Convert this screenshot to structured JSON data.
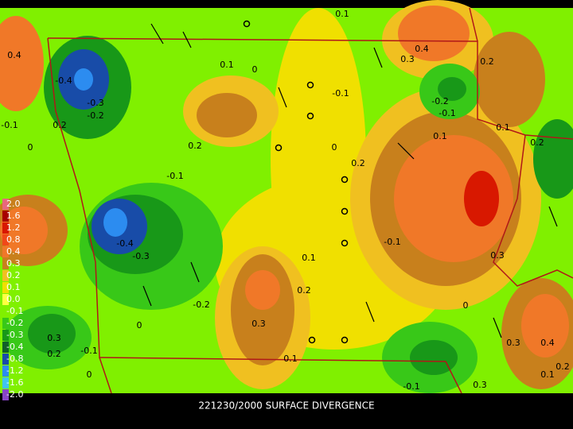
{
  "caption": "221230/2000 SURFACE DIVERGENCE",
  "legend": {
    "items": [
      {
        "label": "2.0",
        "color": "#e8687c"
      },
      {
        "label": "1.6",
        "color": "#a80000"
      },
      {
        "label": "1.2",
        "color": "#d81800"
      },
      {
        "label": "0.8",
        "color": "#f04818"
      },
      {
        "label": "0.4",
        "color": "#f07828"
      },
      {
        "label": "0.3",
        "color": "#c8801c"
      },
      {
        "label": "0.2",
        "color": "#f0c020"
      },
      {
        "label": "0.1",
        "color": "#f0e000"
      },
      {
        "label": "0.0",
        "color": "#ffff40"
      },
      {
        "label": "-0.1",
        "color": "#80f000"
      },
      {
        "label": "-0.2",
        "color": "#38c818"
      },
      {
        "label": "-0.3",
        "color": "#189818"
      },
      {
        "label": "-0.4",
        "color": "#106028"
      },
      {
        "label": "-0.8",
        "color": "#184ca8"
      },
      {
        "label": "-1.2",
        "color": "#2c8cf0"
      },
      {
        "label": "-1.6",
        "color": "#40c4f0"
      },
      {
        "label": "-2.0",
        "color": "#8844c8"
      }
    ]
  },
  "contour_labels": [
    "0.1",
    "0.4",
    "-0.4",
    "-0.3",
    "-0.2",
    "0.2",
    "-0.1",
    "0",
    "0.1",
    "0",
    "-0.1",
    "0.2",
    "0",
    "0.2",
    "-0.1",
    "0.3",
    "0.4",
    "0.2",
    "-0.2",
    "-0.1",
    "0.1",
    "0.1",
    "0.2",
    "-0.4",
    "-0.3",
    "-0.1",
    "0.3",
    "0.1",
    "0.2",
    "0.3",
    "-0.2",
    "0",
    "0.3",
    "0.2",
    "-0.1",
    "0",
    "0.1",
    "0",
    "0.3",
    "0.4",
    "-0.1",
    "0.3",
    "0.1",
    "0.2"
  ]
}
